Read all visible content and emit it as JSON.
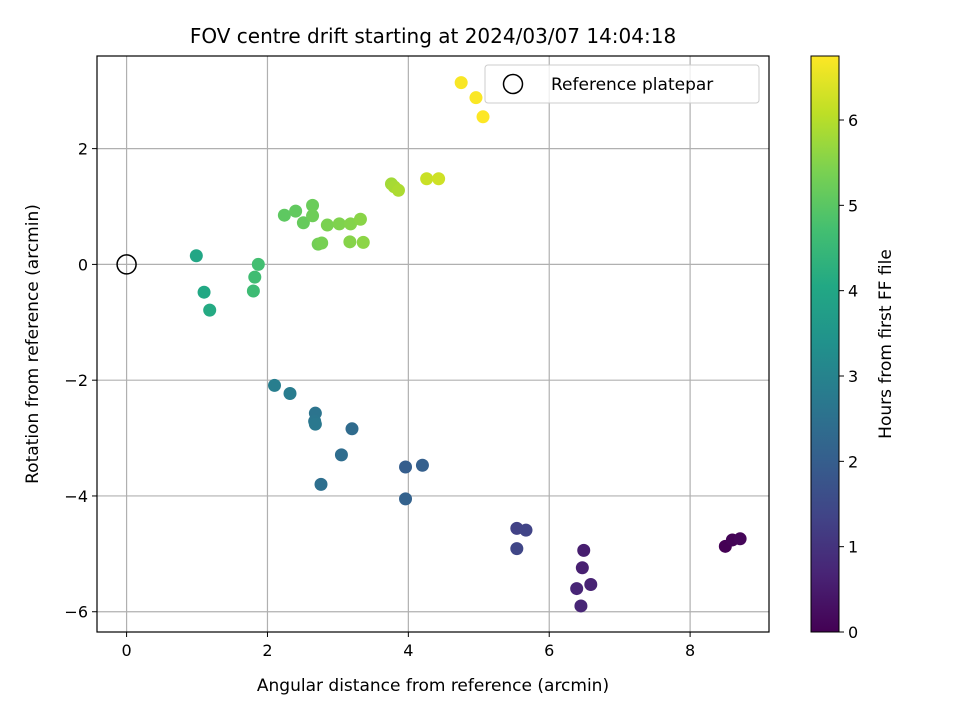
{
  "chart_data": {
    "type": "scatter",
    "title": "FOV centre drift starting at 2024/03/07 14:04:18",
    "xlabel": "Angular distance from reference (arcmin)",
    "ylabel": "Rotation from reference (arcmin)",
    "xlim": [
      -0.42,
      9.12
    ],
    "ylim": [
      -6.35,
      3.6
    ],
    "xticks": [
      0,
      2,
      4,
      6,
      8
    ],
    "yticks": [
      -6,
      -4,
      -2,
      0,
      2
    ],
    "xtick_labels": [
      "0",
      "2",
      "4",
      "6",
      "8"
    ],
    "ytick_labels": [
      "−6",
      "−4",
      "−2",
      "0",
      "2"
    ],
    "grid": true,
    "legend": {
      "placement": "top-right",
      "entries": [
        "Reference platepar"
      ]
    },
    "reference_point": {
      "x": 0,
      "y": 0,
      "label": "Reference platepar"
    },
    "colorbar": {
      "label": "Hours from first FF file",
      "range": [
        0,
        6.75
      ],
      "ticks": [
        0,
        1,
        2,
        3,
        4,
        5,
        6
      ],
      "tick_labels": [
        "0",
        "1",
        "2",
        "3",
        "4",
        "5",
        "6"
      ],
      "colormap": "viridis"
    },
    "points": [
      {
        "x": 8.5,
        "y": -4.87,
        "c": 0.0
      },
      {
        "x": 8.6,
        "y": -4.76,
        "c": 0.05
      },
      {
        "x": 8.71,
        "y": -4.74,
        "c": 0.1
      },
      {
        "x": 6.49,
        "y": -4.94,
        "c": 0.55
      },
      {
        "x": 6.47,
        "y": -5.24,
        "c": 0.6
      },
      {
        "x": 6.59,
        "y": -5.53,
        "c": 0.65
      },
      {
        "x": 6.39,
        "y": -5.6,
        "c": 0.7
      },
      {
        "x": 6.45,
        "y": -5.9,
        "c": 0.72
      },
      {
        "x": 5.54,
        "y": -4.56,
        "c": 1.3
      },
      {
        "x": 5.67,
        "y": -4.59,
        "c": 1.35
      },
      {
        "x": 5.54,
        "y": -4.91,
        "c": 1.4
      },
      {
        "x": 3.96,
        "y": -3.5,
        "c": 2.0
      },
      {
        "x": 4.2,
        "y": -3.47,
        "c": 2.05
      },
      {
        "x": 3.96,
        "y": -4.05,
        "c": 2.1
      },
      {
        "x": 3.2,
        "y": -2.84,
        "c": 2.35
      },
      {
        "x": 3.05,
        "y": -3.29,
        "c": 2.4
      },
      {
        "x": 2.76,
        "y": -3.8,
        "c": 2.45
      },
      {
        "x": 2.68,
        "y": -2.57,
        "c": 2.6
      },
      {
        "x": 2.67,
        "y": -2.71,
        "c": 2.65
      },
      {
        "x": 2.68,
        "y": -2.76,
        "c": 2.7
      },
      {
        "x": 2.32,
        "y": -2.23,
        "c": 2.8
      },
      {
        "x": 2.1,
        "y": -2.09,
        "c": 2.85
      },
      {
        "x": 0.99,
        "y": 0.15,
        "c": 4.0
      },
      {
        "x": 1.1,
        "y": -0.48,
        "c": 4.05
      },
      {
        "x": 1.18,
        "y": -0.79,
        "c": 4.1
      },
      {
        "x": 1.8,
        "y": -0.46,
        "c": 4.6
      },
      {
        "x": 1.82,
        "y": -0.22,
        "c": 4.65
      },
      {
        "x": 1.87,
        "y": 0.0,
        "c": 4.7
      },
      {
        "x": 2.24,
        "y": 0.85,
        "c": 5.05
      },
      {
        "x": 2.4,
        "y": 0.92,
        "c": 5.1
      },
      {
        "x": 2.51,
        "y": 0.72,
        "c": 5.15
      },
      {
        "x": 2.64,
        "y": 1.02,
        "c": 5.2
      },
      {
        "x": 2.64,
        "y": 0.84,
        "c": 5.25
      },
      {
        "x": 2.72,
        "y": 0.35,
        "c": 5.3
      },
      {
        "x": 2.77,
        "y": 0.37,
        "c": 5.35
      },
      {
        "x": 2.85,
        "y": 0.68,
        "c": 5.4
      },
      {
        "x": 3.02,
        "y": 0.7,
        "c": 5.45
      },
      {
        "x": 3.18,
        "y": 0.7,
        "c": 5.5
      },
      {
        "x": 3.17,
        "y": 0.39,
        "c": 5.52
      },
      {
        "x": 3.32,
        "y": 0.78,
        "c": 5.55
      },
      {
        "x": 3.36,
        "y": 0.38,
        "c": 5.58
      },
      {
        "x": 3.76,
        "y": 1.39,
        "c": 5.8
      },
      {
        "x": 3.8,
        "y": 1.34,
        "c": 5.85
      },
      {
        "x": 3.86,
        "y": 1.28,
        "c": 5.9
      },
      {
        "x": 4.26,
        "y": 1.48,
        "c": 6.2
      },
      {
        "x": 4.43,
        "y": 1.48,
        "c": 6.25
      },
      {
        "x": 4.75,
        "y": 3.14,
        "c": 6.7
      },
      {
        "x": 4.96,
        "y": 2.88,
        "c": 6.72
      },
      {
        "x": 5.06,
        "y": 2.55,
        "c": 6.75
      }
    ]
  }
}
